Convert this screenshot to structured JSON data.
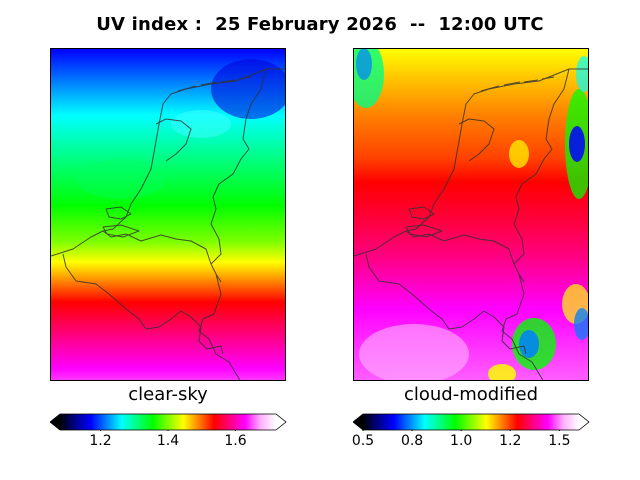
{
  "header": {
    "title": "UV index :  25 February 2026  --  12:00 UTC"
  },
  "panels": [
    {
      "id": "clear-sky",
      "label": "clear-sky",
      "colorbar": {
        "min": 1.08,
        "max": 1.72,
        "extend": "both",
        "ticks": [
          {
            "value": 1.2,
            "label": "1.2"
          },
          {
            "value": 1.4,
            "label": "1.4"
          },
          {
            "value": 1.6,
            "label": "1.6"
          }
        ]
      }
    },
    {
      "id": "cloud-modified",
      "label": "cloud-modified",
      "colorbar": {
        "min": 0.5,
        "max": 1.6,
        "extend": "both",
        "ticks": [
          {
            "value": 0.5,
            "label": "0.5"
          },
          {
            "value": 0.75,
            "label": "0.8"
          },
          {
            "value": 1.0,
            "label": "1.0"
          },
          {
            "value": 1.25,
            "label": "1.2"
          },
          {
            "value": 1.5,
            "label": "1.5"
          }
        ]
      }
    }
  ],
  "colormap": {
    "name": "gist_ncar-like",
    "stops": [
      "#000000",
      "#00008c",
      "#0000ff",
      "#0080ff",
      "#00ffff",
      "#00ff80",
      "#00ff00",
      "#80ff00",
      "#ffff00",
      "#ff8000",
      "#ff0000",
      "#ff0080",
      "#ff00ff",
      "#ffb0ff",
      "#ffffff"
    ]
  }
}
